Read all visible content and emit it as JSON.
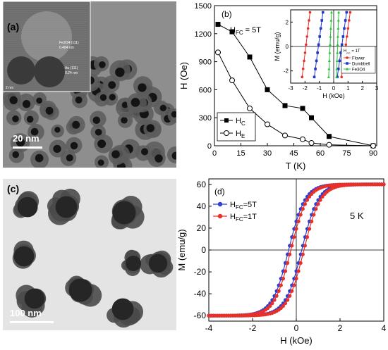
{
  "panel_a": {
    "label": "(a)",
    "scale_text": "20 nm",
    "inset_annotations": [
      "Fe3O4 (111)",
      "0.484 nm",
      "Au (111)",
      "0.24 nm"
    ],
    "inset_corner": "2 nm"
  },
  "panel_c": {
    "label": "(c)",
    "scale_text": "100 nm"
  },
  "panel_b": {
    "label": "(b)",
    "field_note": "H",
    "field_note_sub": "FC",
    "field_note_tail": " = 5T",
    "xlabel": "T (K)",
    "ylabel": "H (Oe)",
    "legend": [
      {
        "base": "H",
        "sub": "C"
      },
      {
        "base": "H",
        "sub": "E"
      }
    ],
    "inset": {
      "xlabel": "H (kOe)",
      "ylabel": "M (emu/g)",
      "legend_title_base": "H",
      "legend_title_sub": "FC",
      "legend_title_tail": " = 1T",
      "legend": [
        "Flower",
        "Dumbbell",
        "Fe3O4"
      ]
    }
  },
  "panel_d": {
    "label": "(d)",
    "temp_note": "5 K",
    "xlabel": "H (kOe)",
    "ylabel": "M (emu/g)",
    "legend": [
      {
        "base": "H",
        "sub": "FC",
        "tail": "=5T"
      },
      {
        "base": "H",
        "sub": "FC",
        "tail": "=1T"
      }
    ]
  },
  "chart_data": [
    {
      "type": "line",
      "panel": "b",
      "xlim": [
        0,
        92
      ],
      "ylim": [
        0,
        1500
      ],
      "xticks": [
        0,
        15,
        30,
        45,
        60,
        75,
        90
      ],
      "yticks": [
        0,
        300,
        600,
        900,
        1200,
        1500
      ],
      "grid": false,
      "legend_position": "bottom-left",
      "series": [
        {
          "name": "Hc",
          "marker": "filled-square",
          "x": [
            2,
            10,
            20,
            30,
            40,
            50,
            55,
            65,
            90
          ],
          "y": [
            1300,
            1220,
            950,
            600,
            430,
            400,
            300,
            100,
            0
          ]
        },
        {
          "name": "HE",
          "marker": "open-circle",
          "x": [
            2,
            10,
            20,
            30,
            40,
            50,
            55,
            65,
            90
          ],
          "y": [
            1000,
            700,
            400,
            230,
            110,
            70,
            30,
            10,
            0
          ]
        }
      ]
    },
    {
      "type": "line",
      "panel": "b-inset",
      "xlim": [
        -3,
        3
      ],
      "ylim": [
        -3,
        3
      ],
      "xticks": [
        -3,
        -2,
        -1,
        0,
        1,
        2,
        3
      ],
      "yticks": [
        -2,
        0,
        2
      ],
      "colors": {
        "Flower": "#e8302a",
        "Dumbbell": "#1f36c8",
        "Fe3O4": "#22c43a"
      },
      "series": [
        {
          "name": "Flower",
          "branches": [
            {
              "x": [
                -2.2,
                -1.65
              ],
              "y": [
                -2.5,
                2.8
              ]
            },
            {
              "x": [
                0.55,
                1.15
              ],
              "y": [
                -2.5,
                2.8
              ]
            }
          ]
        },
        {
          "name": "Dumbbell",
          "branches": [
            {
              "x": [
                -1.35,
                -0.75
              ],
              "y": [
                -2.5,
                2.8
              ]
            },
            {
              "x": [
                0.25,
                0.9
              ],
              "y": [
                -2.5,
                2.8
              ]
            }
          ]
        },
        {
          "name": "Fe3O4",
          "branches": [
            {
              "x": [
                -0.35,
                -0.15
              ],
              "y": [
                -2.5,
                2.8
              ]
            },
            {
              "x": [
                0.2,
                0.35
              ],
              "y": [
                -2.5,
                2.8
              ]
            }
          ]
        }
      ]
    },
    {
      "type": "line",
      "panel": "d",
      "xlim": [
        -4,
        4
      ],
      "ylim": [
        -65,
        65
      ],
      "xticks": [
        -4,
        -2,
        0,
        2,
        4
      ],
      "yticks": [
        -60,
        -40,
        -20,
        0,
        20,
        40,
        60
      ],
      "grid": false,
      "legend_position": "top-left",
      "loop_model": {
        "Ms": 60,
        "Hc": 0.3,
        "width": 0.75
      },
      "series": [
        {
          "name": "HFC=5T",
          "color": "#2b3ed6",
          "marker": "filled-circle",
          "shift": -0.05
        },
        {
          "name": "HFC=1T",
          "color": "#e8302a",
          "marker": "filled-circle",
          "shift": 0.05
        }
      ]
    }
  ]
}
